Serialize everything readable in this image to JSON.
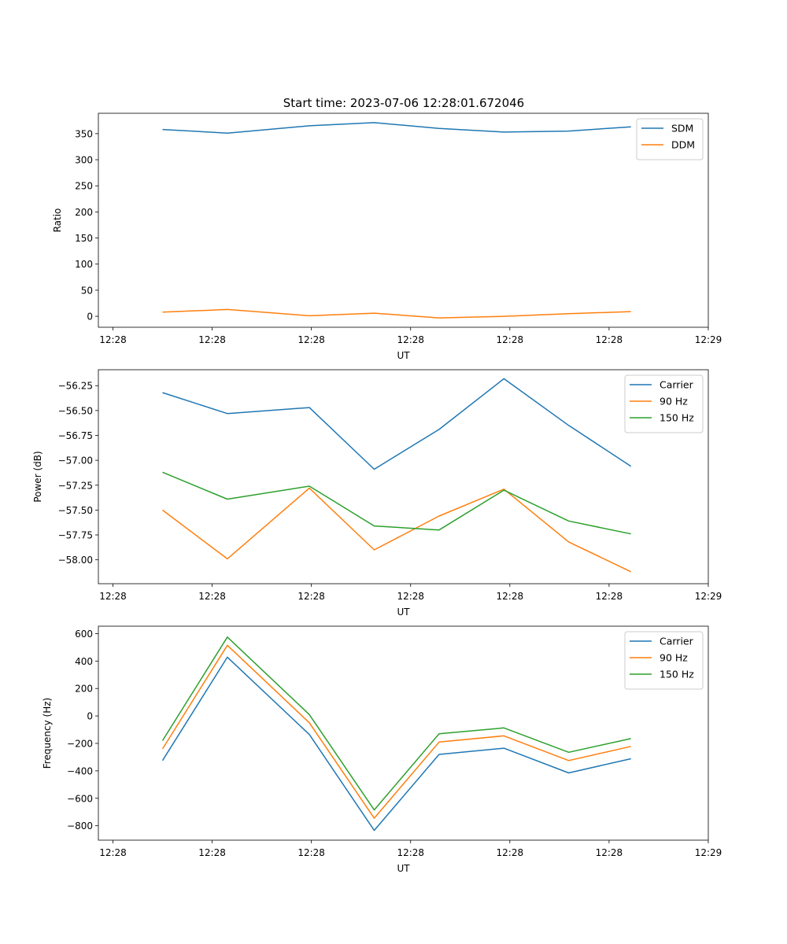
{
  "figure_title": "Start time: 2023-07-06 12:28:01.672046",
  "colors": {
    "c0": "#1f77b4",
    "c1": "#ff7f0e",
    "c2": "#2ca02c",
    "axis": "#000000"
  },
  "chart_data": [
    {
      "type": "line",
      "title": "Start time: 2023-07-06 12:28:01.672046",
      "xlabel": "UT",
      "ylabel": "Ratio",
      "xlim": [
        -0.47,
        8.75
      ],
      "ylim": [
        -21,
        389
      ],
      "xticks": [
        -0.25,
        1.25,
        2.75,
        4.25,
        5.75,
        7.25,
        8.75
      ],
      "xtick_labels": [
        "12:28",
        "12:28",
        "12:28",
        "12:28",
        "12:28",
        "12:28",
        "12:29"
      ],
      "yticks": [
        0,
        50,
        100,
        150,
        200,
        250,
        300,
        350
      ],
      "ytick_labels": [
        "0",
        "50",
        "100",
        "150",
        "200",
        "250",
        "300",
        "350"
      ],
      "legend_position": "top-right",
      "x": [
        0.5,
        1.48,
        2.72,
        3.7,
        4.68,
        5.66,
        6.64,
        7.58
      ],
      "series": [
        {
          "name": "SDM",
          "color": "#1f77b4",
          "values": [
            358,
            351,
            365,
            371,
            360,
            353,
            355,
            363
          ]
        },
        {
          "name": "DDM",
          "color": "#ff7f0e",
          "values": [
            8,
            13,
            1,
            6,
            -3,
            0,
            5,
            9
          ]
        }
      ]
    },
    {
      "type": "line",
      "title": "",
      "xlabel": "UT",
      "ylabel": "Power (dB)",
      "xlim": [
        -0.47,
        8.75
      ],
      "ylim": [
        -58.24,
        -56.09
      ],
      "xticks": [
        -0.25,
        1.25,
        2.75,
        4.25,
        5.75,
        7.25,
        8.75
      ],
      "xtick_labels": [
        "12:28",
        "12:28",
        "12:28",
        "12:28",
        "12:28",
        "12:28",
        "12:29"
      ],
      "yticks": [
        -58.0,
        -57.75,
        -57.5,
        -57.25,
        -57.0,
        -56.75,
        -56.5,
        -56.25
      ],
      "ytick_labels": [
        "−58.00",
        "−57.75",
        "−57.50",
        "−57.25",
        "−57.00",
        "−56.75",
        "−56.50",
        "−56.25"
      ],
      "legend_position": "top-right",
      "x": [
        0.5,
        1.48,
        2.72,
        3.7,
        4.68,
        5.66,
        6.64,
        7.58
      ],
      "series": [
        {
          "name": "Carrier",
          "color": "#1f77b4",
          "values": [
            -56.32,
            -56.53,
            -56.47,
            -57.09,
            -56.69,
            -56.18,
            -56.65,
            -57.06
          ]
        },
        {
          "name": "90 Hz",
          "color": "#ff7f0e",
          "values": [
            -57.5,
            -57.99,
            -57.28,
            -57.9,
            -57.56,
            -57.29,
            -57.82,
            -58.12
          ]
        },
        {
          "name": "150 Hz",
          "color": "#2ca02c",
          "values": [
            -57.12,
            -57.39,
            -57.26,
            -57.66,
            -57.7,
            -57.3,
            -57.61,
            -57.74
          ]
        }
      ]
    },
    {
      "type": "line",
      "title": "",
      "xlabel": "UT",
      "ylabel": "Frequency (Hz)",
      "xlim": [
        -0.47,
        8.75
      ],
      "ylim": [
        -905,
        654
      ],
      "xticks": [
        -0.25,
        1.25,
        2.75,
        4.25,
        5.75,
        7.25,
        8.75
      ],
      "xtick_labels": [
        "12:28",
        "12:28",
        "12:28",
        "12:28",
        "12:28",
        "12:28",
        "12:29"
      ],
      "yticks": [
        -800,
        -600,
        -400,
        -200,
        0,
        200,
        400,
        600
      ],
      "ytick_labels": [
        "−800",
        "−600",
        "−400",
        "−200",
        "0",
        "200",
        "400",
        "600"
      ],
      "legend_position": "top-right",
      "x": [
        0.5,
        1.48,
        2.72,
        3.7,
        4.68,
        5.66,
        6.64,
        7.58
      ],
      "series": [
        {
          "name": "Carrier",
          "color": "#1f77b4",
          "values": [
            -325,
            428,
            -135,
            -834,
            -280,
            -235,
            -415,
            -312
          ]
        },
        {
          "name": "90 Hz",
          "color": "#ff7f0e",
          "values": [
            -240,
            515,
            -50,
            -745,
            -190,
            -145,
            -325,
            -222
          ]
        },
        {
          "name": "150 Hz",
          "color": "#2ca02c",
          "values": [
            -180,
            575,
            10,
            -685,
            -130,
            -87,
            -265,
            -165
          ]
        }
      ]
    }
  ]
}
